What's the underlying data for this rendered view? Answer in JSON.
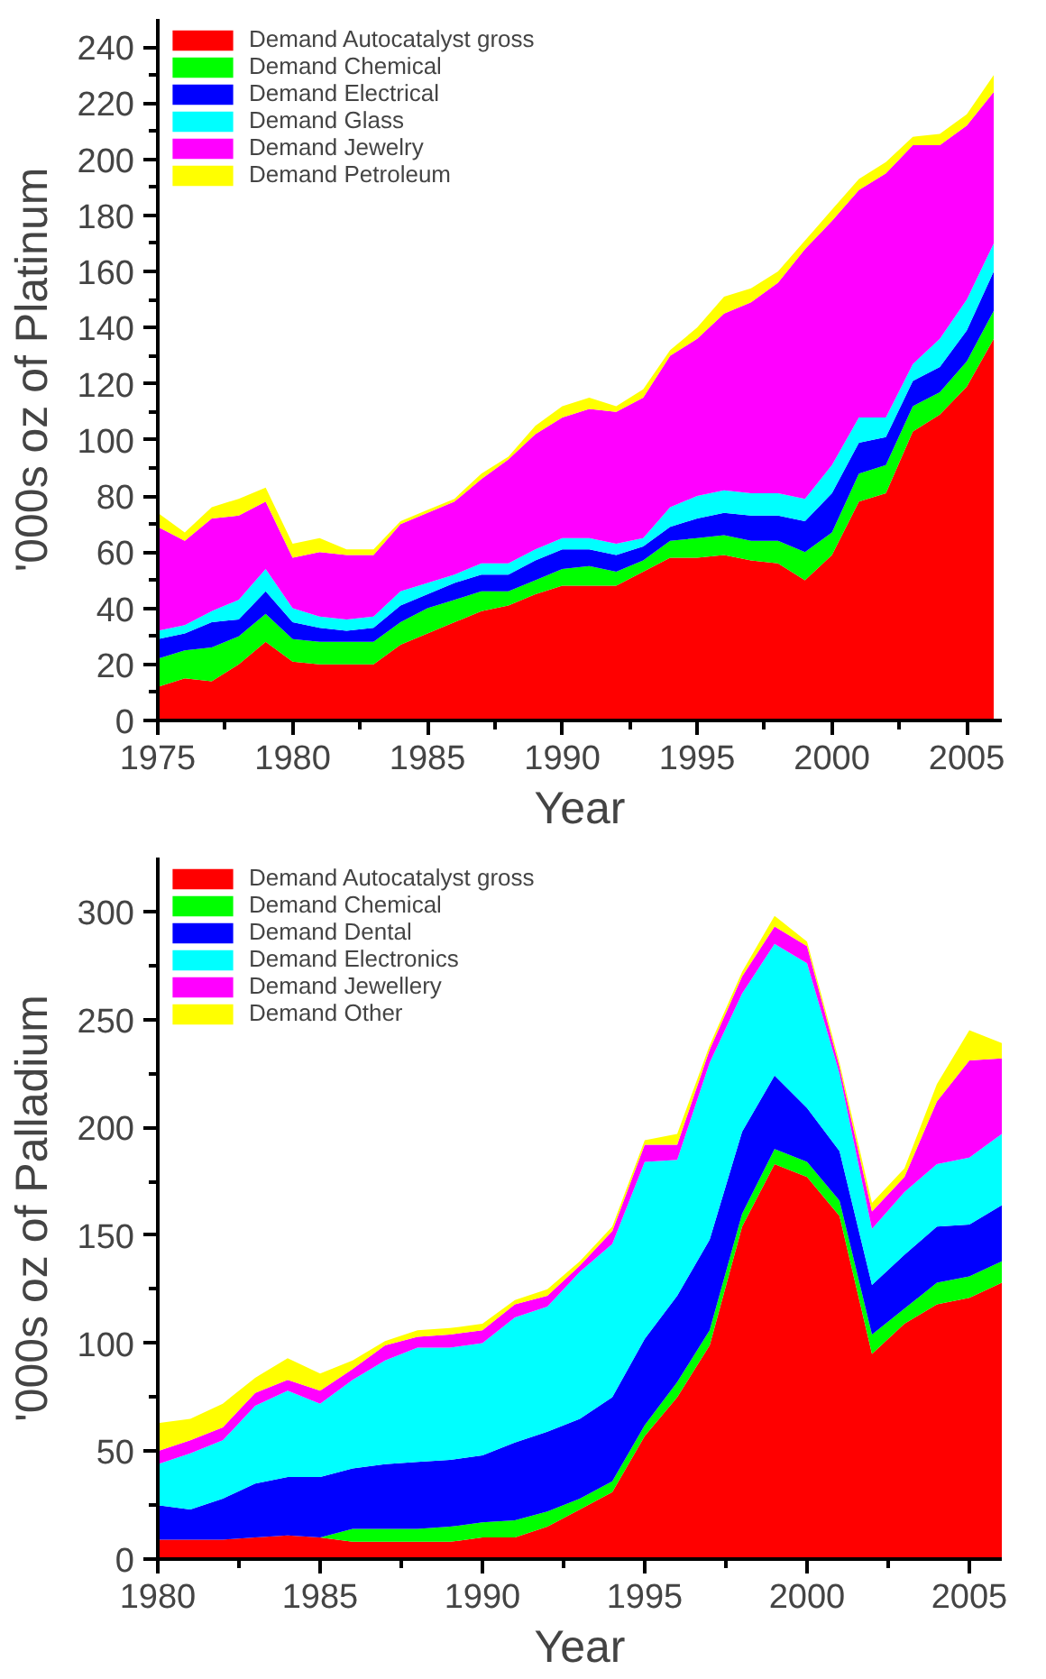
{
  "chart_data": [
    {
      "type": "area",
      "stacked": true,
      "xlabel": "Year",
      "ylabel": "'000s oz of Platinum",
      "legend": "top left",
      "grid": false,
      "x": [
        1975,
        1976,
        1977,
        1978,
        1979,
        1980,
        1981,
        1982,
        1983,
        1984,
        1985,
        1986,
        1987,
        1988,
        1989,
        1990,
        1991,
        1992,
        1993,
        1994,
        1995,
        1996,
        1997,
        1998,
        1999,
        2000,
        2001,
        2002,
        2003,
        2004,
        2005,
        2006
      ],
      "xlim": [
        1975,
        2006.3
      ],
      "xticks": [
        1975,
        1980,
        1985,
        1990,
        1995,
        2000,
        2005
      ],
      "ylim": [
        0,
        250
      ],
      "yticks": [
        0,
        20,
        40,
        60,
        80,
        100,
        120,
        140,
        160,
        180,
        200,
        220,
        240
      ],
      "series": [
        {
          "name": "Demand Autocatalyst gross",
          "color": "#ff0000",
          "values": [
            12,
            15,
            14,
            20,
            28,
            21,
            20,
            20,
            20,
            27,
            31,
            35,
            39,
            41,
            45,
            48,
            48,
            48,
            53,
            58,
            58,
            59,
            57,
            56,
            50,
            59,
            78,
            81,
            103,
            109,
            119,
            136
          ]
        },
        {
          "name": "Demand Chemical",
          "color": "#00ff00",
          "values": [
            10,
            10,
            12,
            10,
            10,
            8,
            8,
            8,
            8,
            8,
            9,
            8,
            7,
            5,
            5,
            6,
            7,
            5,
            4,
            6,
            7,
            7,
            7,
            8,
            10,
            8,
            10,
            10,
            9,
            8,
            9,
            10
          ]
        },
        {
          "name": "Demand Electrical",
          "color": "#0000ff",
          "values": [
            7,
            6,
            9,
            6,
            8,
            6,
            5,
            4,
            5,
            6,
            5,
            6,
            6,
            6,
            7,
            7,
            6,
            6,
            5,
            5,
            7,
            8,
            9,
            9,
            11,
            14,
            11,
            10,
            9,
            9,
            11,
            14
          ]
        },
        {
          "name": "Demand Glass",
          "color": "#00ffff",
          "values": [
            3,
            3,
            4,
            7,
            8,
            5,
            4,
            4,
            4,
            5,
            4,
            3,
            4,
            4,
            4,
            4,
            4,
            4,
            3,
            7,
            8,
            8,
            8,
            8,
            8,
            10,
            9,
            7,
            6,
            10,
            11,
            10
          ]
        },
        {
          "name": "Demand Jewelry",
          "color": "#ff00ff",
          "values": [
            37,
            30,
            33,
            30,
            24,
            18,
            23,
            23,
            22,
            24,
            25,
            26,
            30,
            37,
            41,
            43,
            46,
            47,
            50,
            54,
            56,
            63,
            68,
            75,
            89,
            87,
            81,
            87,
            78,
            69,
            62,
            54
          ]
        },
        {
          "name": "Demand Petroleum",
          "color": "#ffff00",
          "values": [
            5,
            3,
            4,
            6,
            5,
            5,
            5,
            2,
            2,
            1,
            1,
            1,
            2,
            1,
            3,
            4,
            4,
            2,
            3,
            2,
            4,
            6,
            5,
            4,
            3,
            4,
            4,
            4,
            3,
            4,
            4,
            6
          ]
        }
      ]
    },
    {
      "type": "area",
      "stacked": true,
      "xlabel": "Year",
      "ylabel": "'000s oz of Palladium",
      "legend": "top left",
      "grid": false,
      "x": [
        1980,
        1981,
        1982,
        1983,
        1984,
        1985,
        1986,
        1987,
        1988,
        1989,
        1990,
        1991,
        1992,
        1993,
        1994,
        1995,
        1996,
        1997,
        1998,
        1999,
        2000,
        2001,
        2002,
        2003,
        2004,
        2005,
        2006
      ],
      "xlim": [
        1980,
        2006
      ],
      "xticks": [
        1980,
        1985,
        1990,
        1995,
        2000,
        2005
      ],
      "ylim": [
        0,
        325
      ],
      "yticks": [
        0,
        50,
        100,
        150,
        200,
        250,
        300
      ],
      "series": [
        {
          "name": "Demand Autocatalyst gross",
          "color": "#ff0000",
          "values": [
            9,
            9,
            9,
            10,
            11,
            10,
            8,
            8,
            8,
            8,
            10,
            10,
            15,
            23,
            31,
            57,
            75,
            99,
            154,
            183,
            177,
            159,
            95,
            109,
            118,
            121,
            128
          ]
        },
        {
          "name": "Demand Chemical",
          "color": "#00ff00",
          "values": [
            0,
            0,
            0,
            0,
            0,
            0,
            6,
            6,
            6,
            7,
            7,
            8,
            7,
            5,
            5,
            5,
            7,
            7,
            6,
            7,
            7,
            7,
            9,
            7,
            10,
            10,
            10
          ]
        },
        {
          "name": "Demand Dental",
          "color": "#0000ff",
          "values": [
            16,
            14,
            19,
            25,
            27,
            28,
            28,
            30,
            31,
            31,
            31,
            36,
            37,
            37,
            39,
            40,
            40,
            42,
            38,
            34,
            25,
            23,
            23,
            25,
            26,
            24,
            26
          ]
        },
        {
          "name": "Demand Electronics",
          "color": "#00ffff",
          "values": [
            19,
            26,
            27,
            36,
            40,
            34,
            41,
            48,
            53,
            52,
            52,
            58,
            58,
            68,
            71,
            82,
            63,
            82,
            64,
            61,
            67,
            36,
            26,
            29,
            29,
            31,
            33
          ]
        },
        {
          "name": "Demand Jewellery",
          "color": "#ff00ff",
          "values": [
            6,
            6,
            6,
            6,
            5,
            6,
            5,
            7,
            5,
            6,
            6,
            6,
            5,
            3,
            6,
            8,
            7,
            6,
            8,
            8,
            8,
            3,
            8,
            7,
            29,
            45,
            35
          ]
        },
        {
          "name": "Demand Other",
          "color": "#ffff00",
          "values": [
            13,
            10,
            11,
            7,
            10,
            8,
            4,
            2,
            3,
            3,
            3,
            2,
            3,
            2,
            2,
            2,
            5,
            2,
            2,
            5,
            2,
            2,
            4,
            4,
            8,
            14,
            7
          ]
        }
      ]
    }
  ]
}
